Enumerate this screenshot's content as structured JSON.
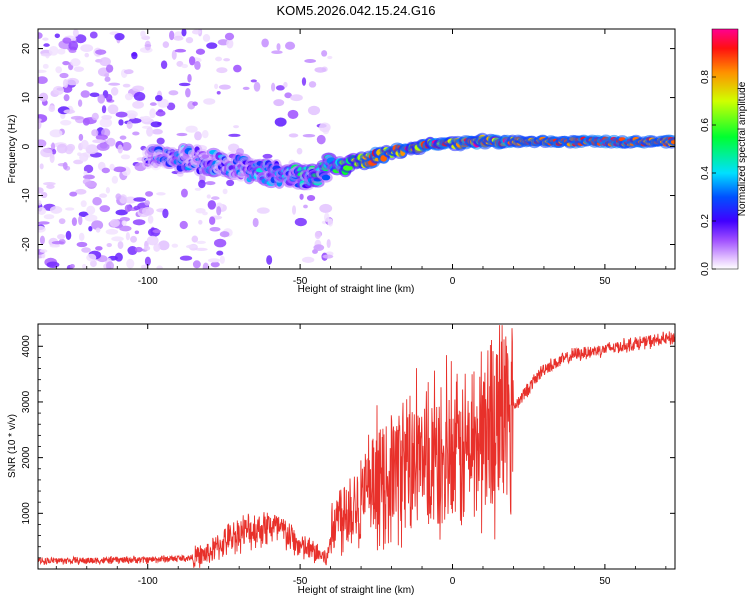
{
  "title": "KOM5.2026.042.15.24.G16",
  "colors": {
    "snr_line": "#e8302a",
    "axis": "#000000"
  },
  "chart_data": [
    {
      "type": "heatmap",
      "name": "spectrogram",
      "xlabel": "Height of straight line (km)",
      "ylabel": "Frequency (Hz)",
      "xlim": [
        -136,
        73
      ],
      "ylim": [
        -25,
        24
      ],
      "x_ticks": [
        -100,
        -50,
        0,
        50
      ],
      "y_ticks": [
        -20,
        -10,
        0,
        10,
        20
      ],
      "colorbar": {
        "label": "Normalized spectral amplitude",
        "range": [
          0.0,
          1.0
        ],
        "ticks": [
          "0.0",
          "0.2",
          "0.4",
          "0.6",
          "0.8"
        ],
        "tick_values": [
          0.0,
          0.2,
          0.4,
          0.6,
          0.8
        ]
      },
      "ridge": {
        "description_points_height_km": [
          -95,
          -80,
          -65,
          -55,
          -45,
          -40,
          -35,
          -25,
          -15,
          -5,
          0,
          10,
          20,
          30,
          50,
          73
        ],
        "frequency_hz": [
          -2,
          -3,
          -5,
          -6,
          -6,
          -4,
          -4,
          -2,
          -0.5,
          0.5,
          0.5,
          1,
          1,
          1,
          1,
          1
        ],
        "amplitude": [
          0.15,
          0.15,
          0.2,
          0.25,
          0.3,
          0.35,
          0.45,
          0.7,
          0.75,
          0.75,
          0.8,
          0.8,
          0.8,
          0.85,
          0.9,
          0.85
        ]
      }
    },
    {
      "type": "line",
      "name": "snr",
      "xlabel": "Height of straight line (km)",
      "ylabel": "SNR (10 * v/v)",
      "xlim": [
        -136,
        73
      ],
      "ylim": [
        0,
        4400
      ],
      "x_ticks": [
        -100,
        -50,
        0,
        50
      ],
      "y_ticks": [
        1000,
        2000,
        3000,
        4000
      ],
      "series": [
        {
          "name": "SNR",
          "x": [
            -136,
            -120,
            -100,
            -85,
            -80,
            -75,
            -70,
            -65,
            -60,
            -55,
            -50,
            -45,
            -41,
            -40,
            -38,
            -35,
            -30,
            -25,
            -20,
            -15,
            -10,
            -5,
            0,
            5,
            10,
            15,
            20,
            25,
            30,
            40,
            50,
            60,
            73
          ],
          "y": [
            150,
            150,
            170,
            200,
            280,
            480,
            650,
            700,
            780,
            650,
            400,
            300,
            180,
            600,
            900,
            1100,
            1250,
            1400,
            1700,
            1900,
            1800,
            1850,
            1900,
            2150,
            2400,
            2700,
            2900,
            3250,
            3600,
            3850,
            3950,
            4050,
            4150
          ]
        }
      ]
    }
  ]
}
